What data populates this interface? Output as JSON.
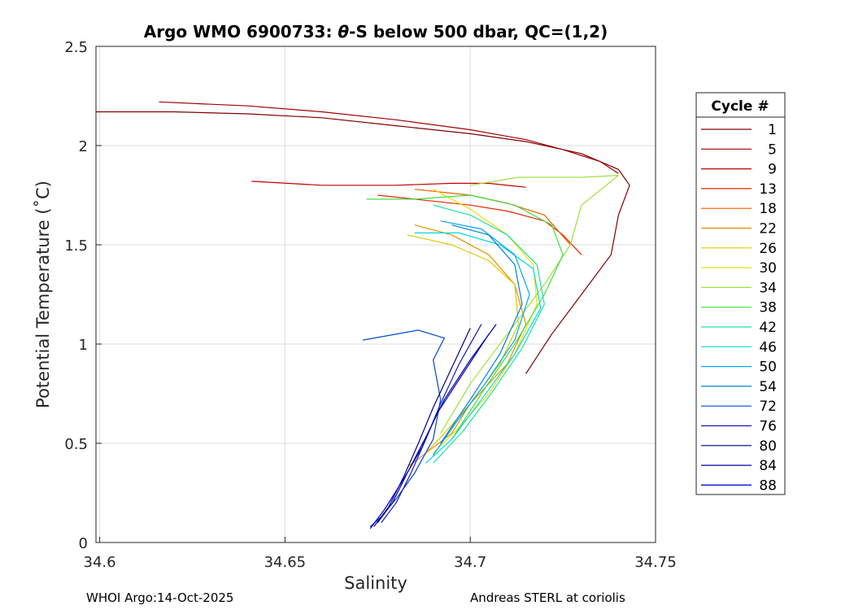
{
  "chart_data": {
    "type": "line",
    "title_prefix": "Argo WMO 6900733: ",
    "title_theta": "θ",
    "title_suffix": "-S below 500 dbar,  QC=(1,2)",
    "xlabel": "Salinity",
    "ylabel": "Potential Temperature (˚C)",
    "xlim": [
      34.599,
      34.75
    ],
    "ylim": [
      0,
      2.5
    ],
    "xticks": [
      34.6,
      34.65,
      34.7,
      34.75
    ],
    "xtick_labels": [
      "34.6",
      "34.65",
      "34.7",
      "34.75"
    ],
    "yticks": [
      0,
      0.5,
      1,
      1.5,
      2,
      2.5
    ],
    "ytick_labels": [
      "0",
      "0.5",
      "1",
      "1.5",
      "2",
      "2.5"
    ],
    "grid": true,
    "legend_title": "Cycle #",
    "legend_position": "outside-right",
    "series": [
      {
        "name": "1",
        "color": "#800000",
        "s": [
          34.599,
          34.62,
          34.64,
          34.66,
          34.68,
          34.7,
          34.715,
          34.73,
          34.74,
          34.743,
          34.74,
          34.738,
          34.73,
          34.722,
          34.715
        ],
        "t": [
          2.17,
          2.17,
          2.16,
          2.14,
          2.1,
          2.06,
          2.02,
          1.96,
          1.88,
          1.8,
          1.65,
          1.45,
          1.25,
          1.05,
          0.85
        ]
      },
      {
        "name": "5",
        "color": "#a00000",
        "s": [
          34.616,
          34.64,
          34.66,
          34.68,
          34.7,
          34.715,
          34.725,
          34.735,
          34.74
        ],
        "t": [
          2.22,
          2.2,
          2.17,
          2.13,
          2.08,
          2.03,
          1.98,
          1.92,
          1.86
        ]
      },
      {
        "name": "9",
        "color": "#c40000",
        "s": [
          34.641,
          34.66,
          34.68,
          34.695,
          34.705,
          34.715
        ],
        "t": [
          1.82,
          1.8,
          1.8,
          1.81,
          1.81,
          1.79
        ]
      },
      {
        "name": "13",
        "color": "#e02800",
        "s": [
          34.675,
          34.69,
          34.7,
          34.71,
          34.72,
          34.725,
          34.73
        ],
        "t": [
          1.75,
          1.72,
          1.7,
          1.67,
          1.62,
          1.55,
          1.45
        ]
      },
      {
        "name": "18",
        "color": "#f05a00",
        "s": [
          34.685,
          34.7,
          34.71,
          34.72,
          34.727
        ],
        "t": [
          1.78,
          1.75,
          1.71,
          1.65,
          1.5
        ]
      },
      {
        "name": "22",
        "color": "#e89000",
        "s": [
          34.685,
          34.695,
          34.705,
          34.712,
          34.715,
          34.71,
          34.7,
          34.695,
          34.688,
          34.683
        ],
        "t": [
          1.6,
          1.55,
          1.45,
          1.3,
          1.1,
          0.9,
          0.7,
          0.55,
          0.45,
          0.38
        ]
      },
      {
        "name": "26",
        "color": "#e0c800",
        "s": [
          34.683,
          34.695,
          34.705,
          34.712,
          34.713,
          34.708,
          34.7,
          34.693,
          34.688
        ],
        "t": [
          1.55,
          1.5,
          1.42,
          1.3,
          1.1,
          0.9,
          0.7,
          0.55,
          0.45
        ]
      },
      {
        "name": "30",
        "color": "#f0e000",
        "s": [
          34.69,
          34.7,
          34.71,
          34.717,
          34.718,
          34.712,
          34.705,
          34.697,
          34.69
        ],
        "t": [
          1.78,
          1.68,
          1.55,
          1.4,
          1.2,
          0.95,
          0.75,
          0.58,
          0.45
        ]
      },
      {
        "name": "34",
        "color": "#a0e040",
        "s": [
          34.7,
          34.713,
          34.73,
          34.74,
          34.73,
          34.727,
          34.72,
          34.71,
          34.7,
          34.692
        ],
        "t": [
          1.8,
          1.84,
          1.84,
          1.85,
          1.7,
          1.5,
          1.3,
          1.05,
          0.8,
          0.55
        ]
      },
      {
        "name": "38",
        "color": "#40e040",
        "s": [
          34.672,
          34.685,
          34.7,
          34.712,
          34.722,
          34.725,
          34.72,
          34.712,
          34.703,
          34.695
        ],
        "t": [
          1.73,
          1.73,
          1.75,
          1.7,
          1.6,
          1.45,
          1.25,
          1.0,
          0.75,
          0.52
        ]
      },
      {
        "name": "42",
        "color": "#20e0a0",
        "s": [
          34.69,
          34.7,
          34.71,
          34.718,
          34.72,
          34.714,
          34.706,
          34.698,
          34.69
        ],
        "t": [
          1.7,
          1.65,
          1.55,
          1.4,
          1.2,
          0.98,
          0.76,
          0.56,
          0.4
        ]
      },
      {
        "name": "46",
        "color": "#00d8e0",
        "s": [
          34.685,
          34.697,
          34.708,
          34.717,
          34.719,
          34.712,
          34.703,
          34.695,
          34.688
        ],
        "t": [
          1.56,
          1.56,
          1.5,
          1.38,
          1.18,
          0.95,
          0.72,
          0.52,
          0.4
        ]
      },
      {
        "name": "50",
        "color": "#00a8f0",
        "s": [
          34.692,
          34.703,
          34.712,
          34.716,
          34.712,
          34.704,
          34.696,
          34.69
        ],
        "t": [
          1.62,
          1.58,
          1.45,
          1.25,
          1.02,
          0.8,
          0.6,
          0.44
        ]
      },
      {
        "name": "54",
        "color": "#0080d8",
        "s": [
          34.695,
          34.705,
          34.712,
          34.714,
          34.708,
          34.7,
          34.692
        ],
        "t": [
          1.6,
          1.55,
          1.4,
          1.2,
          0.95,
          0.72,
          0.5
        ]
      },
      {
        "name": "72",
        "color": "#0048d0",
        "s": [
          34.671,
          34.686,
          34.693,
          34.69,
          34.692,
          34.69,
          34.685,
          34.68,
          34.676,
          34.673
        ],
        "t": [
          1.02,
          1.07,
          1.03,
          0.92,
          0.72,
          0.52,
          0.35,
          0.22,
          0.13,
          0.08
        ]
      },
      {
        "name": "76",
        "color": "#1818c0",
        "s": [
          34.703,
          34.697,
          34.692,
          34.688,
          34.684,
          34.68,
          34.676
        ],
        "t": [
          1.1,
          0.9,
          0.7,
          0.52,
          0.35,
          0.2,
          0.1
        ]
      },
      {
        "name": "80",
        "color": "#000080",
        "s": [
          34.7,
          34.695,
          34.69,
          34.686,
          34.682,
          34.678,
          34.674
        ],
        "t": [
          1.08,
          0.88,
          0.68,
          0.5,
          0.33,
          0.18,
          0.08
        ]
      },
      {
        "name": "84",
        "color": "#0000a0",
        "s": [
          34.707,
          34.7,
          34.693,
          34.688,
          34.683,
          34.679,
          34.675
        ],
        "t": [
          1.1,
          0.92,
          0.72,
          0.53,
          0.35,
          0.2,
          0.1
        ]
      },
      {
        "name": "88",
        "color": "#0000c8",
        "s": [
          34.705,
          34.698,
          34.691,
          34.687,
          34.682,
          34.677,
          34.673
        ],
        "t": [
          1.05,
          0.85,
          0.65,
          0.48,
          0.32,
          0.17,
          0.07
        ]
      }
    ]
  },
  "footer": {
    "left": "WHOI Argo:14-Oct-2025",
    "right": "Andreas STERL at coriolis"
  }
}
